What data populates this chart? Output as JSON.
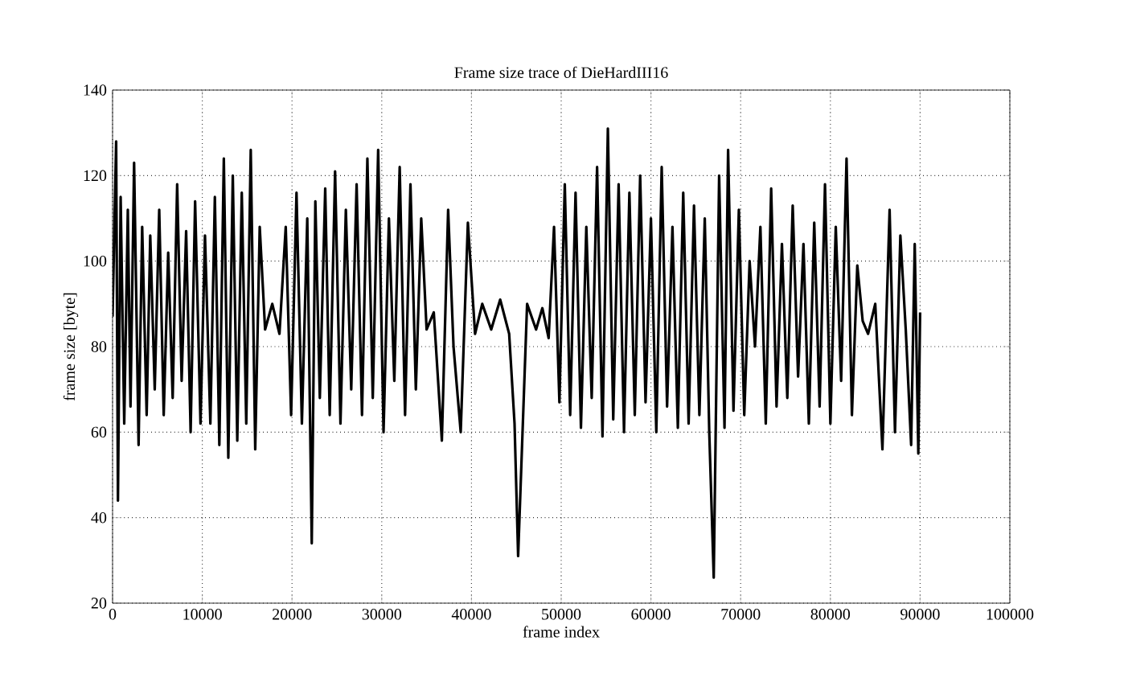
{
  "chart_data": {
    "type": "line",
    "title": "Frame size trace of DieHardIII16",
    "xlabel": "frame index",
    "ylabel": "frame size [byte]",
    "xlim": [
      0,
      100000
    ],
    "ylim": [
      20,
      140
    ],
    "xticks": [
      0,
      10000,
      20000,
      30000,
      40000,
      50000,
      60000,
      70000,
      80000,
      90000,
      100000
    ],
    "yticks": [
      20,
      40,
      60,
      80,
      100,
      120,
      140
    ],
    "grid": true,
    "line_style": "solid",
    "series": [
      {
        "color": "#000000",
        "x": [
          0,
          400,
          600,
          900,
          1300,
          1700,
          2000,
          2400,
          2900,
          3300,
          3800,
          4200,
          4700,
          5200,
          5700,
          6200,
          6700,
          7200,
          7700,
          8200,
          8700,
          9200,
          9800,
          10300,
          10900,
          11400,
          11900,
          12400,
          12900,
          13400,
          13900,
          14400,
          14900,
          15400,
          15900,
          16400,
          17000,
          17800,
          18600,
          19300,
          19900,
          20500,
          21100,
          21700,
          22200,
          22600,
          23100,
          23700,
          24200,
          24800,
          25400,
          26000,
          26600,
          27200,
          27800,
          28400,
          29000,
          29600,
          30200,
          30800,
          31400,
          32000,
          32600,
          33200,
          33800,
          34400,
          35000,
          35800,
          36700,
          37400,
          38000,
          38800,
          39600,
          40400,
          41200,
          42200,
          43200,
          44200,
          44800,
          45200,
          46200,
          47200,
          47900,
          48600,
          49200,
          49800,
          50400,
          51000,
          51600,
          52200,
          52800,
          53400,
          54000,
          54600,
          55200,
          55800,
          56400,
          57000,
          57600,
          58200,
          58800,
          59400,
          60000,
          60600,
          61200,
          61800,
          62400,
          63000,
          63600,
          64200,
          64800,
          65400,
          66000,
          66500,
          67000,
          67600,
          68200,
          68600,
          69200,
          69800,
          70400,
          71000,
          71600,
          72200,
          72800,
          73400,
          74000,
          74600,
          75200,
          75800,
          76400,
          77000,
          77600,
          78200,
          78800,
          79400,
          80000,
          80600,
          81200,
          81800,
          82400,
          83000,
          83600,
          84200,
          85000,
          85800,
          86600,
          87200,
          87800,
          88400,
          89000,
          89400,
          89800,
          90000
        ],
        "values": [
          87,
          128,
          44,
          115,
          62,
          112,
          66,
          123,
          57,
          108,
          64,
          106,
          70,
          112,
          64,
          102,
          68,
          118,
          72,
          107,
          60,
          114,
          62,
          106,
          62,
          115,
          57,
          124,
          54,
          120,
          58,
          116,
          62,
          126,
          56,
          108,
          84,
          90,
          83,
          108,
          64,
          116,
          62,
          110,
          34,
          114,
          68,
          117,
          64,
          121,
          62,
          112,
          70,
          118,
          64,
          124,
          68,
          126,
          60,
          110,
          72,
          122,
          64,
          118,
          70,
          110,
          84,
          88,
          58,
          112,
          80,
          60,
          109,
          83,
          90,
          84,
          91,
          83,
          62,
          31,
          90,
          84,
          89,
          82,
          108,
          67,
          118,
          64,
          116,
          61,
          108,
          68,
          122,
          59,
          131,
          63,
          118,
          60,
          116,
          64,
          120,
          67,
          110,
          60,
          122,
          66,
          108,
          61,
          116,
          62,
          113,
          64,
          110,
          60,
          26,
          120,
          61,
          126,
          65,
          112,
          64,
          100,
          80,
          108,
          62,
          117,
          66,
          104,
          68,
          113,
          73,
          104,
          62,
          109,
          66,
          118,
          62,
          108,
          72,
          124,
          64,
          99,
          86,
          83,
          90,
          56,
          112,
          60,
          106,
          84,
          57,
          104,
          55,
          88
        ]
      }
    ]
  }
}
